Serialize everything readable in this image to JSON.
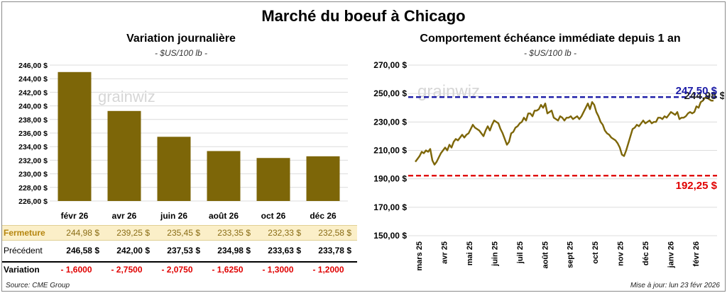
{
  "main_title": "Marché du boeuf à Chicago",
  "left": {
    "title": "Variation journalière",
    "unit": "- $US/100 lb -",
    "watermark": "grainwiz"
  },
  "right": {
    "title": "Comportement  échéance immédiate depuis 1 an",
    "unit": "- $US/100 lb -",
    "watermark": "grainwiz"
  },
  "table": {
    "close_label": "Fermeture",
    "close_values": [
      "244,98  $",
      "239,25  $",
      "235,45  $",
      "233,35  $",
      "232,33  $",
      "232,58  $"
    ],
    "prev_label": "Précédent",
    "prev_values": [
      "246,58  $",
      "242,00  $",
      "237,53  $",
      "234,98  $",
      "233,63  $",
      "233,78  $"
    ],
    "var_label": "Variation",
    "var_values": [
      "- 1,6000",
      "- 2,7500",
      "- 2,0750",
      "- 1,6250",
      "- 1,3000",
      "- 1,2000"
    ]
  },
  "footer": {
    "source": "Source: CME Group",
    "updated": "Mise à jour: lun 23 févr 2026"
  },
  "colors": {
    "bar": "#7d6608",
    "line": "#7d6608",
    "high_line": "#1a1aa6",
    "low_line": "#e00000"
  },
  "chart_data": [
    {
      "type": "bar",
      "categories": [
        "févr 26",
        "avr 26",
        "juin 26",
        "août 26",
        "oct 26",
        "déc 26"
      ],
      "values": [
        244.98,
        239.25,
        235.45,
        233.35,
        232.33,
        232.58
      ],
      "ylim": [
        226,
        246
      ],
      "yticks": [
        "226,00 $",
        "228,00 $",
        "230,00 $",
        "232,00 $",
        "234,00 $",
        "236,00 $",
        "238,00 $",
        "240,00 $",
        "242,00 $",
        "244,00 $",
        "246,00 $"
      ],
      "grid": true
    },
    {
      "type": "line",
      "x_labels": [
        "mars 25",
        "avr 25",
        "mai 25",
        "juin 25",
        "juil 25",
        "août 25",
        "sept 25",
        "oct 25",
        "nov 25",
        "déc 25",
        "janv 26",
        "févr 26"
      ],
      "ylim": [
        150,
        270
      ],
      "yticks": [
        "150,00 $",
        "170,00 $",
        "190,00 $",
        "210,00 $",
        "230,00 $",
        "250,00 $",
        "270,00 $"
      ],
      "grid": true,
      "values": [
        202,
        204,
        206,
        209,
        208,
        210,
        209,
        211,
        203,
        200,
        202,
        205,
        208,
        210,
        212,
        210,
        214,
        212,
        216,
        218,
        217,
        219,
        221,
        219,
        221,
        222,
        225,
        228,
        226,
        225,
        224,
        222,
        220,
        224,
        227,
        224,
        228,
        231,
        230,
        229,
        225,
        222,
        218,
        214,
        216,
        222,
        223,
        226,
        227,
        229,
        230,
        233,
        231,
        236,
        236,
        234,
        238,
        238,
        239,
        242,
        240,
        243,
        236,
        237,
        238,
        233,
        232,
        231,
        234,
        233,
        231,
        233,
        233,
        234,
        232,
        233,
        234,
        232,
        234,
        237,
        240,
        243,
        239,
        244,
        242,
        237,
        234,
        230,
        228,
        224,
        222,
        221,
        219,
        218,
        217,
        215,
        212,
        207,
        206,
        210,
        215,
        220,
        225,
        226,
        228,
        227,
        229,
        231,
        229,
        230,
        231,
        229,
        230,
        230,
        233,
        233,
        232,
        234,
        233,
        235,
        237,
        236,
        235,
        237,
        232,
        233,
        233,
        234,
        236,
        237,
        236,
        237,
        241,
        240,
        244,
        245,
        247,
        247,
        246,
        245,
        244.98
      ],
      "reference_lines": [
        {
          "label": "247,50 $",
          "value": 247.5
        },
        {
          "label": "192,25 $",
          "value": 192.25
        }
      ],
      "last_label": "244,98 $",
      "last_value": 244.98
    }
  ]
}
